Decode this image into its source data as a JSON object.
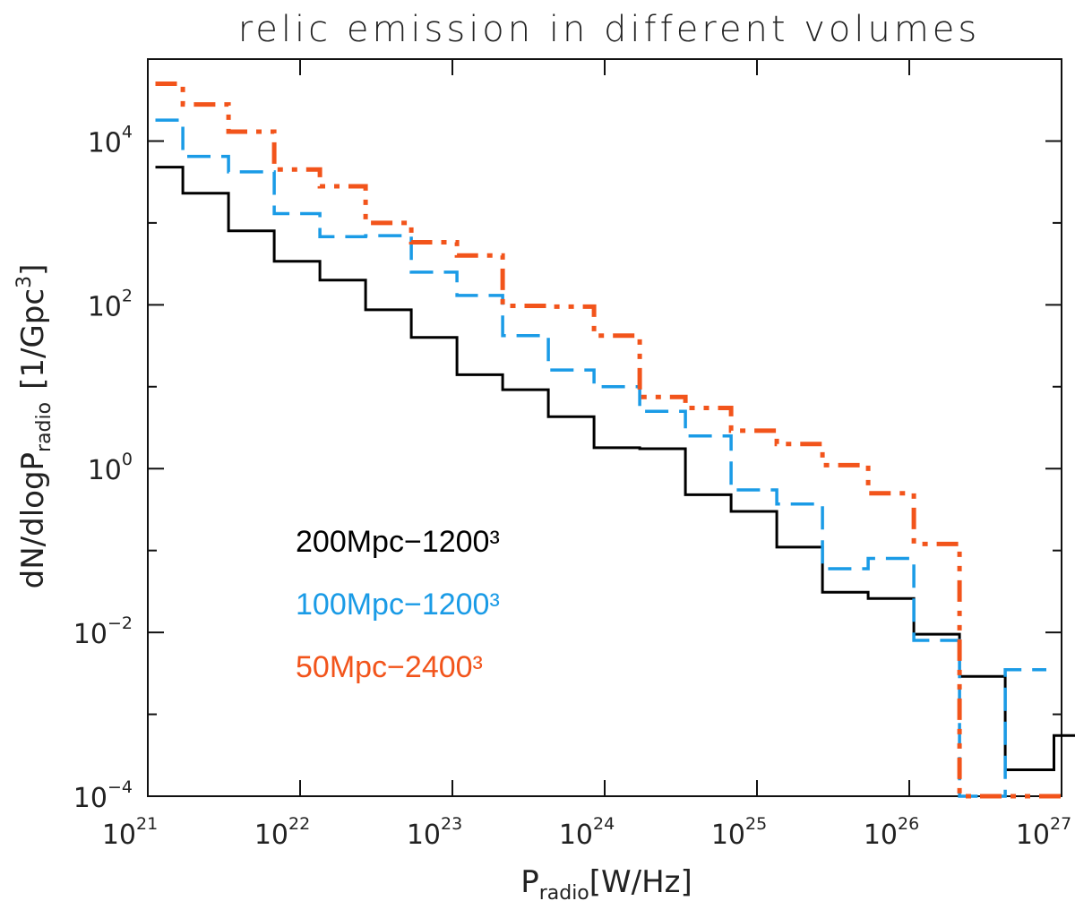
{
  "chart_data": {
    "type": "line",
    "subtype": "step-histogram",
    "title": "relic emission in different volumes",
    "xlabel": {
      "base": "P",
      "sub": "radio",
      "unit": "[W/Hz]"
    },
    "ylabel": {
      "main": "dN/dlogP",
      "sub": "radio",
      "unit": "[1/Gpc",
      "unit_sup": "3",
      "unit_end": "]"
    },
    "x_scale": "log",
    "y_scale": "log",
    "xlim": [
      1e+21,
      1e+27
    ],
    "ylim": [
      0.0001,
      100000
    ],
    "x_ticks": [
      {
        "base": "10",
        "exp": "21"
      },
      {
        "base": "10",
        "exp": "22"
      },
      {
        "base": "10",
        "exp": "23"
      },
      {
        "base": "10",
        "exp": "24"
      },
      {
        "base": "10",
        "exp": "25"
      },
      {
        "base": "10",
        "exp": "26"
      },
      {
        "base": "10",
        "exp": "27"
      }
    ],
    "y_ticks": [
      {
        "base": "10",
        "exp": "−4",
        "value": 0.0001
      },
      {
        "base": "10",
        "exp": "−2",
        "value": 0.01
      },
      {
        "base": "10",
        "exp": "0",
        "value": 1
      },
      {
        "base": "10",
        "exp": "2",
        "value": 100
      },
      {
        "base": "10",
        "exp": "4",
        "value": 10000
      }
    ],
    "legend_position": "lower-left",
    "series": [
      {
        "name": "200Mpc−1200³",
        "color": "#000000",
        "style": "solid",
        "bin_edges_log10": [
          21.05,
          21.23,
          21.53,
          21.83,
          22.13,
          22.43,
          22.73,
          23.03,
          23.33,
          23.63,
          23.93,
          24.23,
          24.53,
          24.83,
          25.13,
          25.43,
          25.73,
          26.03,
          26.33,
          26.63,
          26.95,
          27.1
        ],
        "values": [
          4800,
          2300,
          800,
          340,
          200,
          87,
          40,
          14,
          9.2,
          4.3,
          1.8,
          1.75,
          0.48,
          0.3,
          0.11,
          0.031,
          0.026,
          0.0095,
          0.0029,
          0.00021,
          0.00055
        ]
      },
      {
        "name": "100Mpc−1200³",
        "color": "#1a9be6",
        "style": "dashed",
        "bin_edges_log10": [
          21.05,
          21.23,
          21.53,
          21.83,
          22.13,
          22.43,
          22.73,
          23.03,
          23.33,
          23.63,
          23.93,
          24.23,
          24.53,
          24.83,
          25.13,
          25.43,
          25.73,
          26.03,
          26.33,
          26.63,
          26.9
        ],
        "values": [
          18000,
          6500,
          4200,
          1300,
          680,
          700,
          250,
          130,
          42,
          16,
          10,
          5,
          2.5,
          0.55,
          0.37,
          0.06,
          0.08,
          0.008,
          0.0001,
          0.0035
        ]
      },
      {
        "name": "50Mpc−2400³",
        "color": "#f2541b",
        "style": "dash-dot",
        "bin_edges_log10": [
          21.05,
          21.23,
          21.53,
          21.83,
          22.13,
          22.43,
          22.73,
          23.03,
          23.33,
          23.63,
          23.93,
          24.23,
          24.53,
          24.83,
          25.13,
          25.43,
          25.73,
          26.03,
          26.33,
          26.63,
          27.05
        ],
        "values": [
          50000,
          28000,
          13000,
          4500,
          2800,
          1000,
          580,
          400,
          97,
          95,
          42,
          7.5,
          5.5,
          2.9,
          2,
          1.1,
          0.5,
          0.12,
          0.0001,
          0.0001
        ]
      }
    ]
  }
}
